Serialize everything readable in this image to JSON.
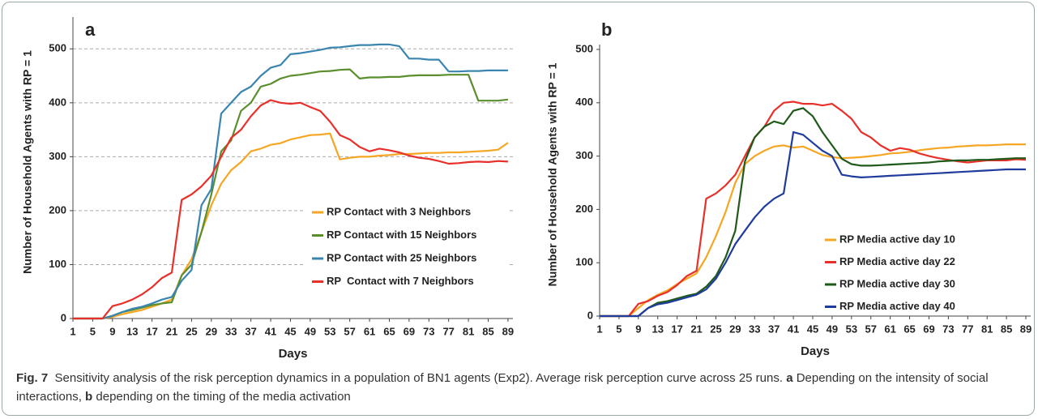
{
  "chart_data": [
    {
      "type": "line",
      "title": "a",
      "y_label": "Number of Household Agents with RP = 1",
      "x_label": "Days",
      "x": [
        1,
        3,
        5,
        7,
        9,
        11,
        13,
        15,
        17,
        19,
        21,
        23,
        25,
        27,
        29,
        31,
        33,
        35,
        37,
        39,
        41,
        43,
        45,
        47,
        49,
        51,
        53,
        55,
        57,
        59,
        61,
        63,
        65,
        67,
        69,
        71,
        73,
        75,
        77,
        79,
        81,
        83,
        85,
        87,
        89
      ],
      "xlim": [
        1,
        90
      ],
      "xticks": [
        1,
        5,
        9,
        13,
        17,
        21,
        25,
        29,
        33,
        37,
        41,
        45,
        49,
        53,
        57,
        61,
        65,
        69,
        73,
        77,
        81,
        85,
        89
      ],
      "ylim": [
        0,
        550
      ],
      "yticks": [
        0,
        100,
        200,
        300,
        400,
        500
      ],
      "grid": true,
      "legend": "lower-right",
      "series": [
        {
          "name": "RP Contact with 3 Neighbors",
          "color": "#f5a623",
          "values": [
            0,
            0,
            0,
            0,
            3,
            8,
            12,
            16,
            22,
            28,
            35,
            80,
            110,
            160,
            210,
            250,
            275,
            290,
            310,
            315,
            322,
            325,
            332,
            336,
            340,
            341,
            343,
            295,
            298,
            300,
            300,
            302,
            303,
            305,
            305,
            306,
            307,
            307,
            308,
            308,
            309,
            310,
            311,
            313,
            326
          ]
        },
        {
          "name": "RP Contact with 15 Neighbors",
          "color": "#5b8f2e",
          "values": [
            0,
            0,
            0,
            0,
            5,
            12,
            16,
            20,
            25,
            28,
            30,
            80,
            100,
            160,
            230,
            310,
            330,
            385,
            400,
            430,
            435,
            445,
            450,
            452,
            455,
            458,
            459,
            461,
            462,
            445,
            447,
            447,
            448,
            448,
            450,
            451,
            451,
            451,
            452,
            452,
            452,
            404,
            404,
            404,
            406
          ]
        },
        {
          "name": "RP Contact with 25 Neighbors",
          "color": "#3a85b0",
          "values": [
            0,
            0,
            0,
            0,
            5,
            12,
            18,
            22,
            28,
            35,
            40,
            70,
            90,
            210,
            240,
            380,
            400,
            420,
            430,
            450,
            465,
            470,
            490,
            492,
            495,
            498,
            502,
            503,
            505,
            507,
            507,
            508,
            508,
            505,
            482,
            482,
            480,
            480,
            458,
            458,
            459,
            459,
            460,
            460,
            460
          ]
        },
        {
          "name": "RP  Contact with 7 Neighbors",
          "color": "#e8302a",
          "values": [
            0,
            0,
            0,
            0,
            23,
            28,
            35,
            45,
            58,
            75,
            85,
            220,
            230,
            245,
            265,
            300,
            335,
            350,
            375,
            395,
            405,
            400,
            398,
            400,
            392,
            385,
            365,
            340,
            332,
            318,
            310,
            315,
            312,
            308,
            302,
            298,
            296,
            292,
            287,
            288,
            290,
            291,
            290,
            292,
            291
          ]
        }
      ]
    },
    {
      "type": "line",
      "title": "b",
      "y_label": "Number of Household Agents with RP = 1",
      "x_label": "Days",
      "x": [
        1,
        3,
        5,
        7,
        9,
        11,
        13,
        15,
        17,
        19,
        21,
        23,
        25,
        27,
        29,
        31,
        33,
        35,
        37,
        39,
        41,
        43,
        45,
        47,
        49,
        51,
        53,
        55,
        57,
        59,
        61,
        63,
        65,
        67,
        69,
        71,
        73,
        75,
        77,
        79,
        81,
        83,
        85,
        87,
        89
      ],
      "xlim": [
        1,
        90
      ],
      "xticks": [
        1,
        5,
        9,
        13,
        17,
        21,
        25,
        29,
        33,
        37,
        41,
        45,
        49,
        53,
        57,
        61,
        65,
        69,
        73,
        77,
        81,
        85,
        89
      ],
      "ylim": [
        0,
        500
      ],
      "yticks": [
        0,
        100,
        200,
        300,
        400,
        500
      ],
      "grid": false,
      "legend": "lower-right",
      "series": [
        {
          "name": "RP Media active day 10",
          "color": "#f5a623",
          "values": [
            0,
            0,
            0,
            0,
            15,
            30,
            40,
            48,
            60,
            70,
            80,
            110,
            150,
            195,
            250,
            285,
            300,
            310,
            318,
            320,
            316,
            318,
            310,
            302,
            298,
            296,
            297,
            298,
            300,
            302,
            305,
            306,
            308,
            311,
            313,
            315,
            316,
            318,
            319,
            320,
            320,
            321,
            322,
            322,
            322
          ]
        },
        {
          "name": "RP Media active day 22",
          "color": "#e8302a",
          "values": [
            0,
            0,
            0,
            0,
            23,
            28,
            38,
            45,
            58,
            75,
            85,
            220,
            230,
            245,
            265,
            300,
            335,
            355,
            385,
            400,
            402,
            398,
            398,
            395,
            398,
            385,
            370,
            345,
            335,
            320,
            310,
            315,
            312,
            305,
            300,
            296,
            293,
            290,
            288,
            290,
            292,
            292,
            292,
            294,
            293
          ]
        },
        {
          "name": "RP Media active day 30",
          "color": "#1f5a1a",
          "values": [
            0,
            0,
            0,
            0,
            0,
            15,
            25,
            28,
            33,
            38,
            42,
            55,
            75,
            110,
            160,
            290,
            335,
            355,
            365,
            360,
            385,
            390,
            375,
            345,
            320,
            295,
            285,
            282,
            282,
            283,
            284,
            285,
            286,
            287,
            288,
            290,
            291,
            292,
            292,
            293,
            293,
            294,
            295,
            296,
            296
          ]
        },
        {
          "name": "RP Media active day 40",
          "color": "#1f3c9c",
          "values": [
            0,
            0,
            0,
            0,
            0,
            15,
            22,
            25,
            30,
            35,
            40,
            50,
            70,
            100,
            135,
            160,
            185,
            205,
            220,
            230,
            345,
            340,
            325,
            310,
            300,
            265,
            262,
            260,
            261,
            262,
            263,
            264,
            265,
            266,
            267,
            268,
            269,
            270,
            271,
            272,
            273,
            274,
            275,
            275,
            275
          ]
        }
      ]
    }
  ],
  "caption": [
    {
      "text": "Fig. 7",
      "bold": true
    },
    {
      "text": "  Sensitivity analysis of the risk perception dynamics in a population of BN1 agents (Exp2). Average risk perception curve across 25 runs. ",
      "bold": false
    },
    {
      "text": "a",
      "bold": true
    },
    {
      "text": " Depending on the intensity of social interactions, ",
      "bold": false
    },
    {
      "text": "b",
      "bold": true
    },
    {
      "text": " depending on the timing of the media activation",
      "bold": false
    }
  ]
}
